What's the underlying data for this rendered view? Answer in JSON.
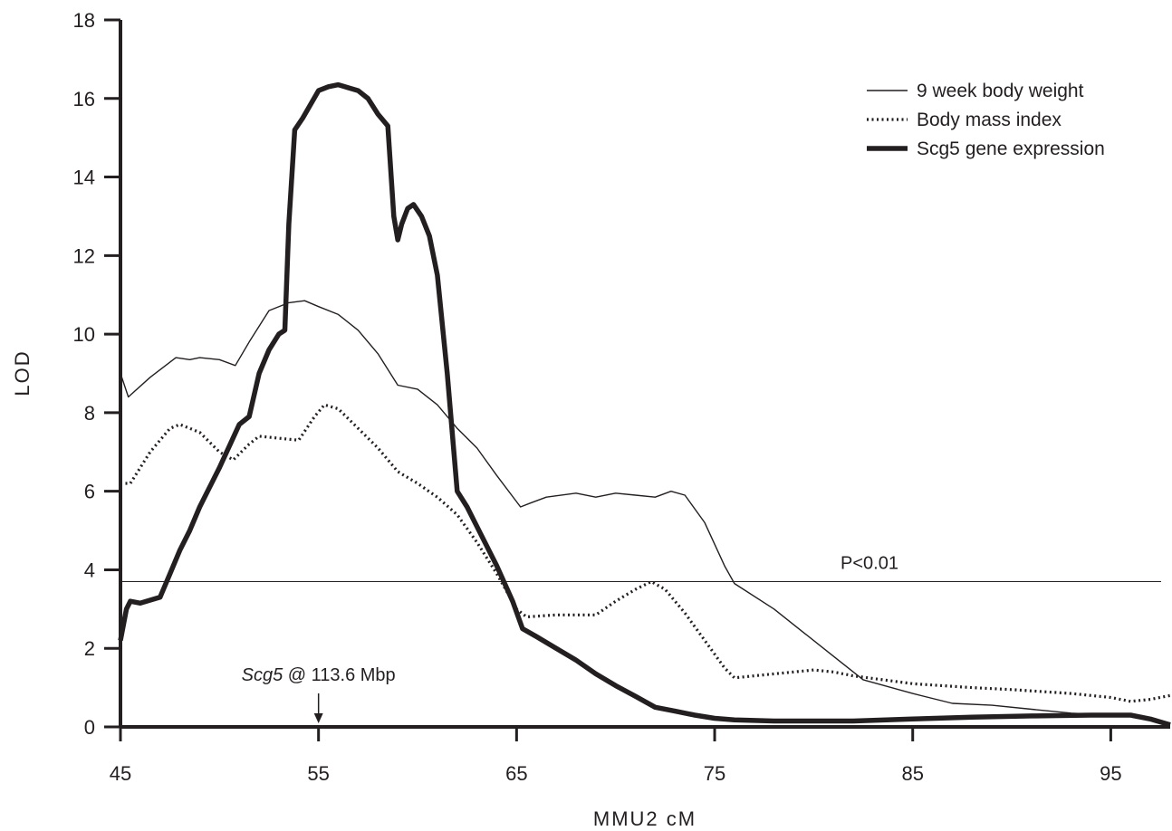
{
  "chart_data": {
    "type": "line",
    "title": "",
    "xlabel": "MMU2 cM",
    "ylabel": "LOD",
    "xlim": [
      45,
      98
    ],
    "ylim": [
      0,
      18
    ],
    "xticks": [
      45,
      55,
      65,
      75,
      85,
      95
    ],
    "yticks": [
      0,
      2,
      4,
      6,
      8,
      10,
      12,
      14,
      16,
      18
    ],
    "grid": false,
    "legend_position": "top-right",
    "threshold": {
      "value": 3.7,
      "label": "P<0.01"
    },
    "marker": {
      "x": 55,
      "gene": "Scg5",
      "label_rest": " @ 113.6 Mbp"
    },
    "series": [
      {
        "name": "9 week body weight",
        "style": "thin",
        "color": "#231f20",
        "x": [
          45,
          45.4,
          46.5,
          47.8,
          48.5,
          49,
          50,
          50.8,
          51.5,
          52.5,
          53.5,
          54.3,
          55,
          56,
          57,
          58,
          59,
          60,
          61,
          62,
          63,
          64,
          65.2,
          65.7,
          66.5,
          68,
          69,
          70,
          71,
          72,
          72.8,
          73.5,
          74.5,
          75.5,
          76,
          78,
          79.5,
          81,
          82.5,
          85,
          87,
          89,
          91,
          93,
          95,
          96.5,
          97,
          98
        ],
        "y": [
          9.0,
          8.4,
          8.9,
          9.4,
          9.35,
          9.4,
          9.35,
          9.2,
          9.8,
          10.6,
          10.8,
          10.85,
          10.7,
          10.5,
          10.1,
          9.5,
          8.7,
          8.6,
          8.2,
          7.6,
          7.1,
          6.4,
          5.6,
          5.7,
          5.85,
          5.95,
          5.85,
          5.95,
          5.9,
          5.85,
          6.0,
          5.9,
          5.2,
          4.1,
          3.65,
          3.0,
          2.4,
          1.8,
          1.2,
          0.85,
          0.6,
          0.55,
          0.45,
          0.35,
          0.3,
          0.25,
          0.2,
          0.1
        ]
      },
      {
        "name": "Body mass index",
        "style": "dotted",
        "color": "#231f20",
        "x": [
          45,
          45.5,
          46.5,
          47.5,
          48,
          49,
          50,
          50.7,
          51.5,
          52,
          53,
          54,
          54.8,
          55.3,
          56,
          57,
          58,
          59,
          60,
          61,
          62,
          63,
          64,
          65,
          65.5,
          67,
          68,
          69,
          70,
          71,
          71.8,
          72.5,
          73.5,
          74.5,
          75.5,
          76,
          77,
          78,
          79,
          80,
          81,
          82,
          85,
          88,
          90,
          93,
          95,
          96,
          97,
          98
        ],
        "y": [
          6.2,
          6.2,
          7.0,
          7.6,
          7.7,
          7.5,
          7.0,
          6.8,
          7.2,
          7.4,
          7.35,
          7.3,
          7.9,
          8.2,
          8.1,
          7.6,
          7.1,
          6.5,
          6.2,
          5.85,
          5.4,
          4.7,
          3.9,
          3.0,
          2.8,
          2.85,
          2.85,
          2.85,
          3.2,
          3.5,
          3.7,
          3.5,
          2.9,
          2.2,
          1.5,
          1.25,
          1.3,
          1.35,
          1.4,
          1.45,
          1.4,
          1.3,
          1.1,
          1.0,
          0.95,
          0.85,
          0.75,
          0.65,
          0.7,
          0.8
        ]
      },
      {
        "name": "Scg5 gene expression",
        "style": "thick",
        "color": "#231f20",
        "x": [
          45,
          45.3,
          45.5,
          46,
          47,
          47.5,
          48,
          48.5,
          49,
          49.5,
          50,
          51,
          51.5,
          52,
          52.5,
          53,
          53.3,
          53.5,
          53.8,
          54.2,
          55,
          55.5,
          56,
          57,
          57.5,
          58,
          58.5,
          58.8,
          59,
          59.2,
          59.5,
          59.8,
          60.2,
          60.6,
          61,
          61.5,
          62,
          62.5,
          63,
          64,
          64.8,
          65.3,
          66,
          67,
          68,
          69,
          70,
          71,
          72,
          73,
          74,
          75,
          76,
          78,
          80,
          82,
          85,
          88,
          91,
          94,
          96,
          97,
          98
        ],
        "y": [
          2.2,
          3.0,
          3.2,
          3.15,
          3.3,
          3.9,
          4.5,
          5.0,
          5.6,
          6.1,
          6.6,
          7.7,
          7.9,
          9.0,
          9.6,
          10.0,
          10.1,
          12.8,
          15.2,
          15.5,
          16.2,
          16.3,
          16.35,
          16.2,
          16.0,
          15.6,
          15.3,
          13.0,
          12.4,
          12.8,
          13.2,
          13.3,
          13.0,
          12.5,
          11.5,
          9.0,
          6.0,
          5.6,
          5.1,
          4.1,
          3.2,
          2.5,
          2.3,
          2.0,
          1.7,
          1.35,
          1.05,
          0.78,
          0.5,
          0.4,
          0.3,
          0.22,
          0.18,
          0.15,
          0.15,
          0.15,
          0.2,
          0.25,
          0.28,
          0.3,
          0.3,
          0.2,
          0.05
        ]
      }
    ]
  }
}
